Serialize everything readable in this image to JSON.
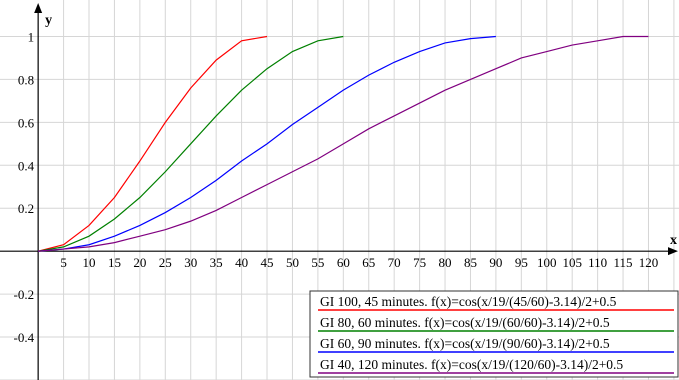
{
  "chart_data": {
    "type": "line",
    "xlabel": "x",
    "ylabel": "y",
    "xlim": [
      -7.5,
      126
    ],
    "ylim": [
      -0.6,
      1.17
    ],
    "x_ticks": [
      5,
      10,
      15,
      20,
      25,
      30,
      35,
      40,
      45,
      50,
      55,
      60,
      65,
      70,
      75,
      80,
      85,
      90,
      95,
      100,
      105,
      110,
      115,
      120
    ],
    "y_ticks": [
      -0.4,
      -0.2,
      0.2,
      0.4,
      0.6,
      0.8,
      1
    ],
    "y_tick_labels": [
      "-0.4",
      "-0.2",
      "0.2",
      "0.4",
      "0.6",
      "0.8",
      "1"
    ],
    "grid": true,
    "legend_position": "bottom-right",
    "series": [
      {
        "name": "GI 100, 45 minutes. f(x)=cos(x/19/(45/60)-3.14)/2+0.5",
        "color": "#ff0000",
        "x": [
          0,
          5,
          10,
          15,
          20,
          25,
          30,
          35,
          40,
          45
        ],
        "y": [
          0,
          0.03,
          0.12,
          0.25,
          0.42,
          0.6,
          0.76,
          0.89,
          0.98,
          1
        ]
      },
      {
        "name": "GI 80, 60 minutes. f(x)=cos(x/19/(60/60)-3.14)/2+0.5",
        "color": "#008000",
        "x": [
          0,
          5,
          10,
          15,
          20,
          25,
          30,
          35,
          40,
          45,
          50,
          55,
          60
        ],
        "y": [
          0,
          0.02,
          0.07,
          0.15,
          0.25,
          0.37,
          0.5,
          0.63,
          0.75,
          0.85,
          0.93,
          0.98,
          1
        ]
      },
      {
        "name": "GI 60, 90 minutes. f(x)=cos(x/19/(90/60)-3.14)/2+0.5",
        "color": "#0000ff",
        "x": [
          0,
          5,
          10,
          15,
          20,
          25,
          30,
          35,
          40,
          45,
          50,
          55,
          60,
          65,
          70,
          75,
          80,
          85,
          90
        ],
        "y": [
          0,
          0.01,
          0.03,
          0.07,
          0.12,
          0.18,
          0.25,
          0.33,
          0.42,
          0.5,
          0.59,
          0.67,
          0.75,
          0.82,
          0.88,
          0.93,
          0.97,
          0.99,
          1
        ]
      },
      {
        "name": "GI 40, 120 minutes. f(x)=cos(x/19/(120/60)-3.14)/2+0.5",
        "color": "#800080",
        "x": [
          0,
          5,
          10,
          15,
          20,
          25,
          30,
          35,
          40,
          45,
          50,
          55,
          60,
          65,
          70,
          75,
          80,
          85,
          90,
          95,
          100,
          105,
          110,
          115,
          120
        ],
        "y": [
          0,
          0.01,
          0.02,
          0.04,
          0.07,
          0.1,
          0.14,
          0.19,
          0.25,
          0.31,
          0.37,
          0.43,
          0.5,
          0.57,
          0.63,
          0.69,
          0.75,
          0.8,
          0.85,
          0.9,
          0.93,
          0.96,
          0.98,
          1,
          1
        ]
      }
    ]
  }
}
